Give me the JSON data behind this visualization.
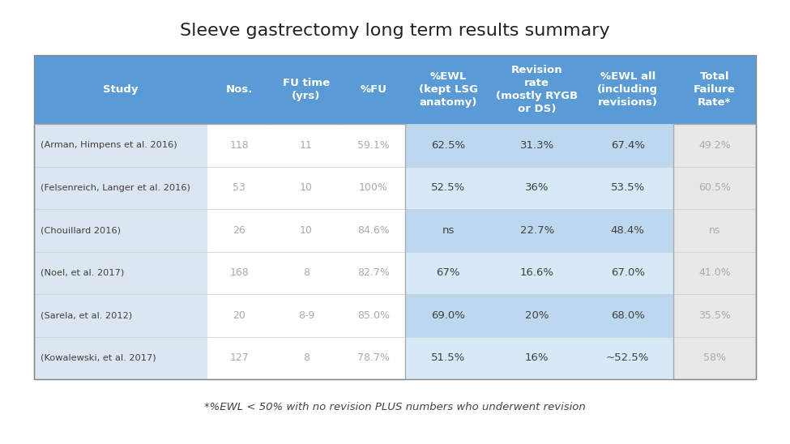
{
  "title": "Sleeve gastrectomy long term results summary",
  "footnote": "*%EWL < 50% with no revision PLUS numbers who underwent revision",
  "col_headers": [
    "Study",
    "Nos.",
    "FU time\n(yrs)",
    "%FU",
    "%EWL\n(kept LSG\nanatomy)",
    "Revision\nrate\n(mostly RYGB\nor DS)",
    "%EWL all\n(including\nrevisions)",
    "Total\nFailure\nRate*"
  ],
  "rows": [
    [
      "(Arman, Himpens et al. 2016)",
      "118",
      "11",
      "59.1%",
      "62.5%",
      "31.3%",
      "67.4%",
      "49.2%"
    ],
    [
      "(Felsenreich, Langer et al. 2016)",
      "53",
      "10",
      "100%",
      "52.5%",
      "36%",
      "53.5%",
      "60.5%"
    ],
    [
      "(Chouillard 2016)",
      "26",
      "10",
      "84.6%",
      "ns",
      "22.7%",
      "48.4%",
      "ns"
    ],
    [
      "(Noel, et al. 2017)",
      "168",
      "8",
      "82.7%",
      "67%",
      "16.6%",
      "67.0%",
      "41.0%"
    ],
    [
      "(Sarela, et al. 2012)",
      "20",
      "8-9",
      "85.0%",
      "69.0%",
      "20%",
      "68.0%",
      "35.5%"
    ],
    [
      "(Kowalewski, et al. 2017)",
      "127",
      "8",
      "78.7%",
      "51.5%",
      "16%",
      "~52.5%",
      "58%"
    ]
  ],
  "header_bg": "#5B9BD5",
  "header_text": "#FFFFFF",
  "row_bg_light": "#FFFFFF",
  "row_bg_alt": "#DCE6F1",
  "study_col_bg": "#DCE6F1",
  "middle_col_bg_light": "#FFFFFF",
  "middle_col_bg_alt": "#DCE6F1",
  "highlight_col_bg_light": "#BDD7EE",
  "highlight_col_bg_alt": "#9DC3E6",
  "last_col_bg": "#E8E8E8",
  "muted_text": "#AAAAAA",
  "dark_text": "#404040",
  "title_fontsize": 16,
  "header_fontsize": 9.5,
  "cell_fontsize": 9,
  "footnote_fontsize": 9.5
}
